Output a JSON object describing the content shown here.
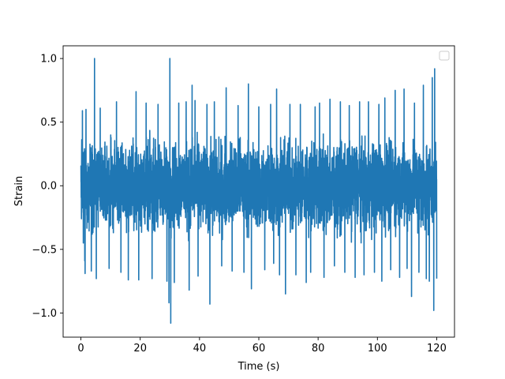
{
  "chart_data": {
    "type": "line",
    "title": "",
    "xlabel": "Time (s)",
    "ylabel": "Strain",
    "xlim": [
      -6.0,
      126.0
    ],
    "ylim": [
      -1.19,
      1.1
    ],
    "xticks": [
      0,
      20,
      40,
      60,
      80,
      100,
      120
    ],
    "xtick_labels": [
      "0",
      "20",
      "40",
      "60",
      "80",
      "100",
      "120"
    ],
    "yticks": [
      -1.0,
      -0.5,
      0.0,
      0.5,
      1.0
    ],
    "ytick_labels": [
      "−1.0",
      "−0.5",
      "0.0",
      "0.5",
      "1.0"
    ],
    "grid": false,
    "legend": {
      "placement": "top-right",
      "entries": []
    },
    "series": [
      {
        "color": "#1f77b4",
        "x_range": [
          0,
          120
        ],
        "typical_envelope": [
          -0.45,
          0.45
        ],
        "peaks": [
          {
            "x": 0.5,
            "y": 0.59
          },
          {
            "x": 0.8,
            "y": -0.45
          },
          {
            "x": 1.3,
            "y": -0.59
          },
          {
            "x": 1.7,
            "y": 0.6
          },
          {
            "x": 1.4,
            "y": -0.69
          },
          {
            "x": 3.5,
            "y": -0.67
          },
          {
            "x": 4.6,
            "y": 1.0
          },
          {
            "x": 5.2,
            "y": -0.73
          },
          {
            "x": 6.5,
            "y": 0.61
          },
          {
            "x": 9.5,
            "y": -0.65
          },
          {
            "x": 12.0,
            "y": 0.66
          },
          {
            "x": 13.5,
            "y": -0.68
          },
          {
            "x": 16.0,
            "y": -0.74
          },
          {
            "x": 18.6,
            "y": 0.74
          },
          {
            "x": 19.5,
            "y": -0.74
          },
          {
            "x": 22.0,
            "y": 0.65
          },
          {
            "x": 24.0,
            "y": -0.73
          },
          {
            "x": 26.0,
            "y": 0.64
          },
          {
            "x": 29.0,
            "y": -0.75
          },
          {
            "x": 29.7,
            "y": -0.92
          },
          {
            "x": 30.0,
            "y": 1.0
          },
          {
            "x": 30.3,
            "y": -1.08
          },
          {
            "x": 31.5,
            "y": -0.76
          },
          {
            "x": 33.0,
            "y": 0.65
          },
          {
            "x": 35.5,
            "y": 0.66
          },
          {
            "x": 36.5,
            "y": -0.82
          },
          {
            "x": 37.5,
            "y": 0.79
          },
          {
            "x": 38.5,
            "y": 0.67
          },
          {
            "x": 39.5,
            "y": -0.71
          },
          {
            "x": 42.5,
            "y": 0.64
          },
          {
            "x": 43.5,
            "y": -0.93
          },
          {
            "x": 45.0,
            "y": 0.66
          },
          {
            "x": 47.5,
            "y": -0.63
          },
          {
            "x": 49.0,
            "y": 0.77
          },
          {
            "x": 51.0,
            "y": -0.67
          },
          {
            "x": 53.0,
            "y": 0.63
          },
          {
            "x": 55.0,
            "y": -0.68
          },
          {
            "x": 56.5,
            "y": 0.8
          },
          {
            "x": 57.5,
            "y": -0.81
          },
          {
            "x": 60.0,
            "y": 0.62
          },
          {
            "x": 62.0,
            "y": -0.66
          },
          {
            "x": 64.0,
            "y": 0.64
          },
          {
            "x": 65.0,
            "y": -0.61
          },
          {
            "x": 66.0,
            "y": 0.76
          },
          {
            "x": 67.0,
            "y": -0.7
          },
          {
            "x": 69.0,
            "y": -0.85
          },
          {
            "x": 70.5,
            "y": 0.64
          },
          {
            "x": 72.5,
            "y": -0.7
          },
          {
            "x": 74.0,
            "y": 0.64
          },
          {
            "x": 76.0,
            "y": -0.76
          },
          {
            "x": 77.5,
            "y": -0.68
          },
          {
            "x": 79.0,
            "y": 0.62
          },
          {
            "x": 80.5,
            "y": 0.65
          },
          {
            "x": 82.0,
            "y": -0.72
          },
          {
            "x": 84.0,
            "y": 0.68
          },
          {
            "x": 85.5,
            "y": -0.63
          },
          {
            "x": 87.5,
            "y": 0.66
          },
          {
            "x": 89.0,
            "y": -0.68
          },
          {
            "x": 90.5,
            "y": 0.63
          },
          {
            "x": 92.5,
            "y": -0.72
          },
          {
            "x": 94.0,
            "y": 0.66
          },
          {
            "x": 95.5,
            "y": -0.7
          },
          {
            "x": 97.0,
            "y": 0.66
          },
          {
            "x": 99.0,
            "y": -0.68
          },
          {
            "x": 100.5,
            "y": 0.64
          },
          {
            "x": 101.5,
            "y": -0.75
          },
          {
            "x": 102.5,
            "y": 0.69
          },
          {
            "x": 104.5,
            "y": -0.66
          },
          {
            "x": 106.0,
            "y": 0.75
          },
          {
            "x": 107.5,
            "y": -0.72
          },
          {
            "x": 109.0,
            "y": 0.76
          },
          {
            "x": 110.0,
            "y": -0.65
          },
          {
            "x": 111.5,
            "y": -0.87
          },
          {
            "x": 112.5,
            "y": 0.65
          },
          {
            "x": 114.0,
            "y": -0.68
          },
          {
            "x": 115.5,
            "y": 0.79
          },
          {
            "x": 116.5,
            "y": -0.73
          },
          {
            "x": 117.5,
            "y": -0.75
          },
          {
            "x": 118.5,
            "y": 0.85
          },
          {
            "x": 119.0,
            "y": -0.98
          },
          {
            "x": 119.3,
            "y": 0.92
          },
          {
            "x": 120.0,
            "y": -0.73
          }
        ]
      }
    ]
  }
}
